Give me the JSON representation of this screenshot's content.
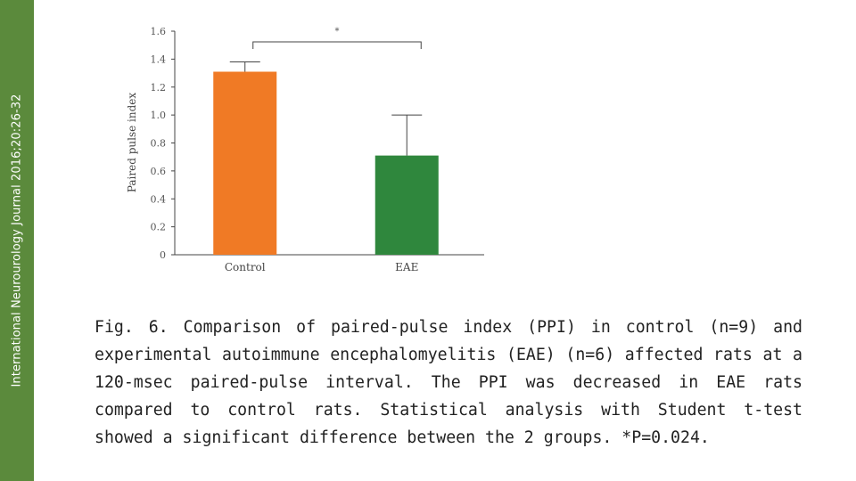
{
  "journal_band": {
    "text": "International Neurourology Journal 2016;20:26-32",
    "color": "#5b8a3c"
  },
  "chart_data": {
    "type": "bar",
    "categories": [
      "Control",
      "EAE"
    ],
    "values": [
      1.31,
      0.71
    ],
    "errors": [
      0.07,
      0.29
    ],
    "bar_colors": [
      "#f07a25",
      "#2f873d"
    ],
    "ylabel": "Paired pulse index",
    "xlabel": "",
    "ylim": [
      0,
      1.6
    ],
    "yticks": [
      0,
      0.2,
      0.4,
      0.6,
      0.8,
      1.0,
      1.2,
      1.4,
      1.6
    ],
    "ytick_labels": [
      "0",
      "0.2",
      "0.4",
      "0.6",
      "0.8",
      "1.0",
      "1.2",
      "1.4",
      "1.6"
    ],
    "grid": false,
    "significance": {
      "between": [
        "Control",
        "EAE"
      ],
      "label": "*"
    }
  },
  "caption": {
    "text": "Fig. 6. Comparison of paired-pulse index (PPI) in control (n=9) and experimental autoimmune encephalomyelitis (EAE) (n=6) affected rats at a 120-msec paired-pulse interval. The PPI was decreased in EAE rats compared to control rats. Statistical analysis with Student t-test showed a significant difference between the 2 groups. *P=0.024."
  }
}
